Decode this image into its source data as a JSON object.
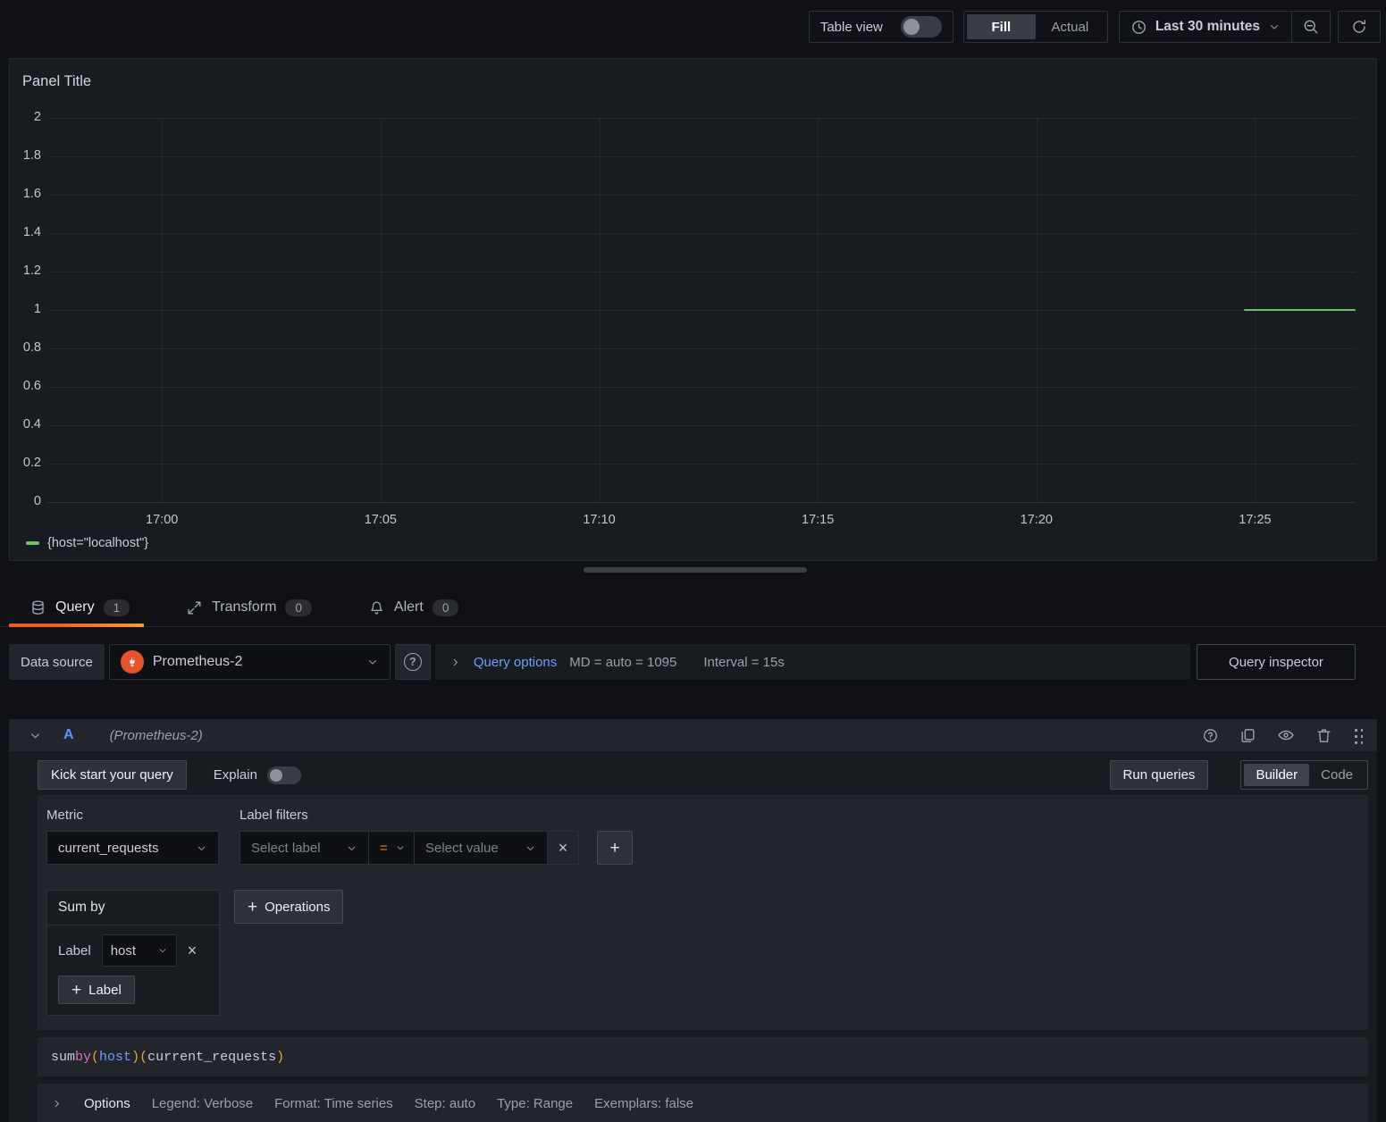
{
  "toolbar": {
    "table_view_label": "Table view",
    "fill_label": "Fill",
    "actual_label": "Actual",
    "time_range_label": "Last 30 minutes"
  },
  "panel": {
    "title": "Panel Title"
  },
  "chart_data": {
    "type": "line",
    "title": "Panel Title",
    "xlabel": "",
    "ylabel": "",
    "grid": true,
    "legend_position": "bottom-left",
    "ylim": [
      0,
      2
    ],
    "y_ticks": [
      0,
      0.2,
      0.4,
      0.6,
      0.8,
      1,
      1.2,
      1.4,
      1.6,
      1.8,
      2
    ],
    "x_axis_unit": "minutes after 17:00",
    "xlim_minutes": [
      -2.6,
      27.3
    ],
    "x_ticks": [
      {
        "minute": 0,
        "label": "17:00"
      },
      {
        "minute": 5,
        "label": "17:05"
      },
      {
        "minute": 10,
        "label": "17:10"
      },
      {
        "minute": 15,
        "label": "17:15"
      },
      {
        "minute": 20,
        "label": "17:20"
      },
      {
        "minute": 25,
        "label": "17:25"
      }
    ],
    "series": [
      {
        "name": "{host=\"localhost\"}",
        "color": "#73bf69",
        "value": 1,
        "start_minute": 24.75,
        "end_minute": 27.3
      }
    ]
  },
  "tabs": [
    {
      "label": "Query",
      "badge": "1",
      "active": true
    },
    {
      "label": "Transform",
      "badge": "0",
      "active": false
    },
    {
      "label": "Alert",
      "badge": "0",
      "active": false
    }
  ],
  "datasource_row": {
    "label": "Data source",
    "value": "Prometheus-2",
    "query_options_label": "Query options",
    "md_text": "MD = auto = 1095",
    "interval_text": "Interval = 15s",
    "query_inspector_label": "Query inspector"
  },
  "query_row": {
    "ref_id": "A",
    "datasource_hint": "(Prometheus-2)",
    "kick_start_label": "Kick start your query",
    "explain_label": "Explain",
    "run_queries_label": "Run queries",
    "builder_label": "Builder",
    "code_label": "Code",
    "metric_label": "Metric",
    "metric_value": "current_requests",
    "label_filters_label": "Label filters",
    "select_label_placeholder": "Select label",
    "operator_value": "=",
    "select_value_placeholder": "Select value",
    "sum_by_title": "Sum by",
    "sum_by_label_text": "Label",
    "sum_by_label_value": "host",
    "add_label_text": "Label",
    "operations_label": "Operations",
    "code_tokens": [
      {
        "t": "sum ",
        "c": "text"
      },
      {
        "t": "by",
        "c": "keyword"
      },
      {
        "t": "(",
        "c": "paren"
      },
      {
        "t": "host",
        "c": "label"
      },
      {
        "t": ")",
        "c": "paren"
      },
      {
        "t": " ",
        "c": "text"
      },
      {
        "t": "(",
        "c": "paren"
      },
      {
        "t": "current_requests",
        "c": "text"
      },
      {
        "t": ")",
        "c": "paren"
      }
    ],
    "options_label": "Options",
    "options_summary": [
      "Legend: Verbose",
      "Format: Time series",
      "Step: auto",
      "Type: Range",
      "Exemplars: false"
    ]
  },
  "colors": {
    "accent_orange": "#ff780a",
    "series_green": "#73bf69",
    "link_blue": "#6e9fff",
    "code": {
      "text": "#ccccdc",
      "keyword": "#dd6bd0",
      "paren": "#e9a23b",
      "label": "#6e9fff"
    }
  }
}
